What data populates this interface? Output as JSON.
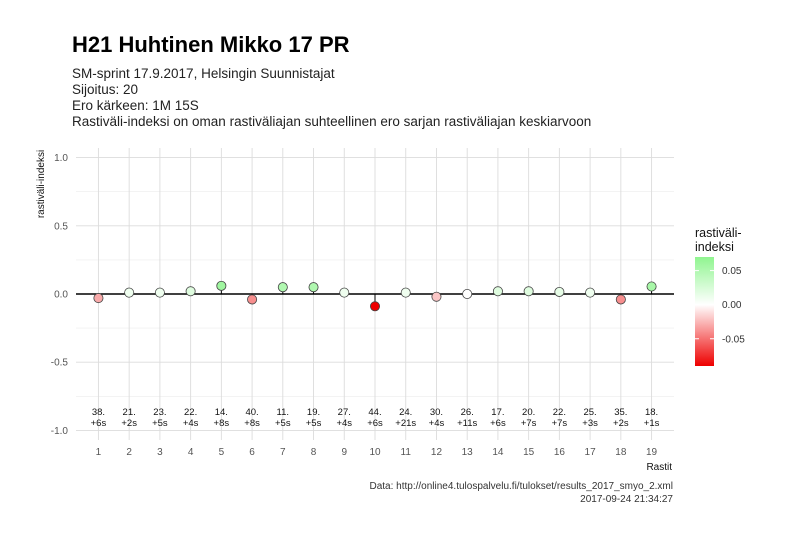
{
  "title": "H21 Huhtinen Mikko 17 PR",
  "subtitle_lines": [
    "SM-sprint 17.9.2017, Helsingin Suunnistajat",
    "Sijoitus: 20",
    "Ero kärkeen: 1M 15S",
    "Rastiväli-indeksi on oman rastiväliajan suhteellinen ero sarjan rastiväliajan keskiarvoon"
  ],
  "caption": {
    "source": "Data: http://online4.tulospalvelu.fi/tulokset/results_2017_smyo_2.xml",
    "timestamp": "2017-09-24 21:34:27"
  },
  "chart_data": {
    "type": "scatter",
    "xlabel": "Rastit",
    "ylabel": "rastiväli-indeksi",
    "ylim": [
      -1.07,
      1.07
    ],
    "yticks": [
      1.0,
      0.5,
      0.0,
      -0.5,
      -1.0
    ],
    "ytick_labels": [
      "1.0",
      "0.5",
      "0.0",
      "-0.5",
      "-1.0"
    ],
    "x": [
      1,
      2,
      3,
      4,
      5,
      6,
      7,
      8,
      9,
      10,
      11,
      12,
      13,
      14,
      15,
      16,
      17,
      18,
      19
    ],
    "values": [
      -0.03,
      0.01,
      0.01,
      0.02,
      0.06,
      -0.04,
      0.05,
      0.05,
      0.01,
      -0.09,
      0.01,
      -0.02,
      0.0,
      0.02,
      0.02,
      0.015,
      0.01,
      -0.04,
      0.055
    ],
    "point_labels_top": [
      "38.",
      "21.",
      "23.",
      "22.",
      "14.",
      "40.",
      "11.",
      "19.",
      "27.",
      "44.",
      "24.",
      "30.",
      "26.",
      "17.",
      "20.",
      "22.",
      "25.",
      "35.",
      "18."
    ],
    "point_labels_bottom": [
      "+6s",
      "+2s",
      "+5s",
      "+4s",
      "+8s",
      "+8s",
      "+5s",
      "+5s",
      "+4s",
      "+6s",
      "+21s",
      "+4s",
      "+11s",
      "+6s",
      "+7s",
      "+7s",
      "+3s",
      "+2s",
      "+1s"
    ],
    "legend": {
      "title_lines": [
        "rastiväli-",
        "indeksi"
      ],
      "tick_labels": [
        "0.05",
        "0.00",
        "-0.05"
      ],
      "tick_values": [
        0.05,
        0.0,
        -0.05
      ],
      "range": [
        -0.09,
        0.07
      ],
      "placement": "right"
    },
    "colors": {
      "high": "#90f590",
      "mid": "#ffffff",
      "low": "#ee0000"
    },
    "grid": true
  }
}
